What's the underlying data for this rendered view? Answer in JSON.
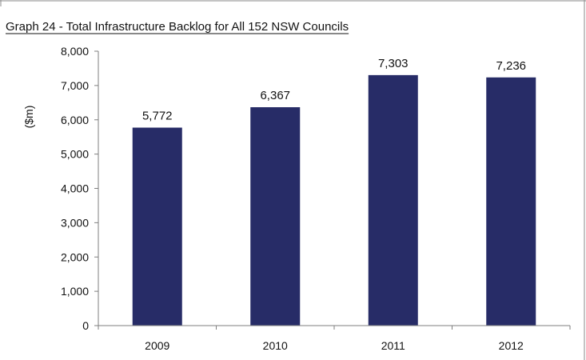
{
  "chart_data": {
    "type": "bar",
    "title": "Graph 24 -  Total Infrastructure Backlog for All 152 NSW Councils",
    "xlabel": "",
    "ylabel": "($m)",
    "categories": [
      "2009",
      "2010",
      "2011",
      "2012"
    ],
    "values": [
      5772,
      6367,
      7303,
      7236
    ],
    "data_labels": [
      "5,772",
      "6,367",
      "7,303",
      "7,236"
    ],
    "ylim": [
      0,
      8000
    ],
    "y_ticks": [
      0,
      1000,
      2000,
      3000,
      4000,
      5000,
      6000,
      7000,
      8000
    ],
    "y_tick_labels": [
      "0",
      "1,000",
      "2,000",
      "3,000",
      "4,000",
      "5,000",
      "6,000",
      "7,000",
      "8,000"
    ],
    "grid": false,
    "legend": "none",
    "colors": {
      "bar": "#272c67",
      "axis": "#7f7f7f",
      "text": "#111111",
      "frame": "#7f7f7f"
    }
  }
}
